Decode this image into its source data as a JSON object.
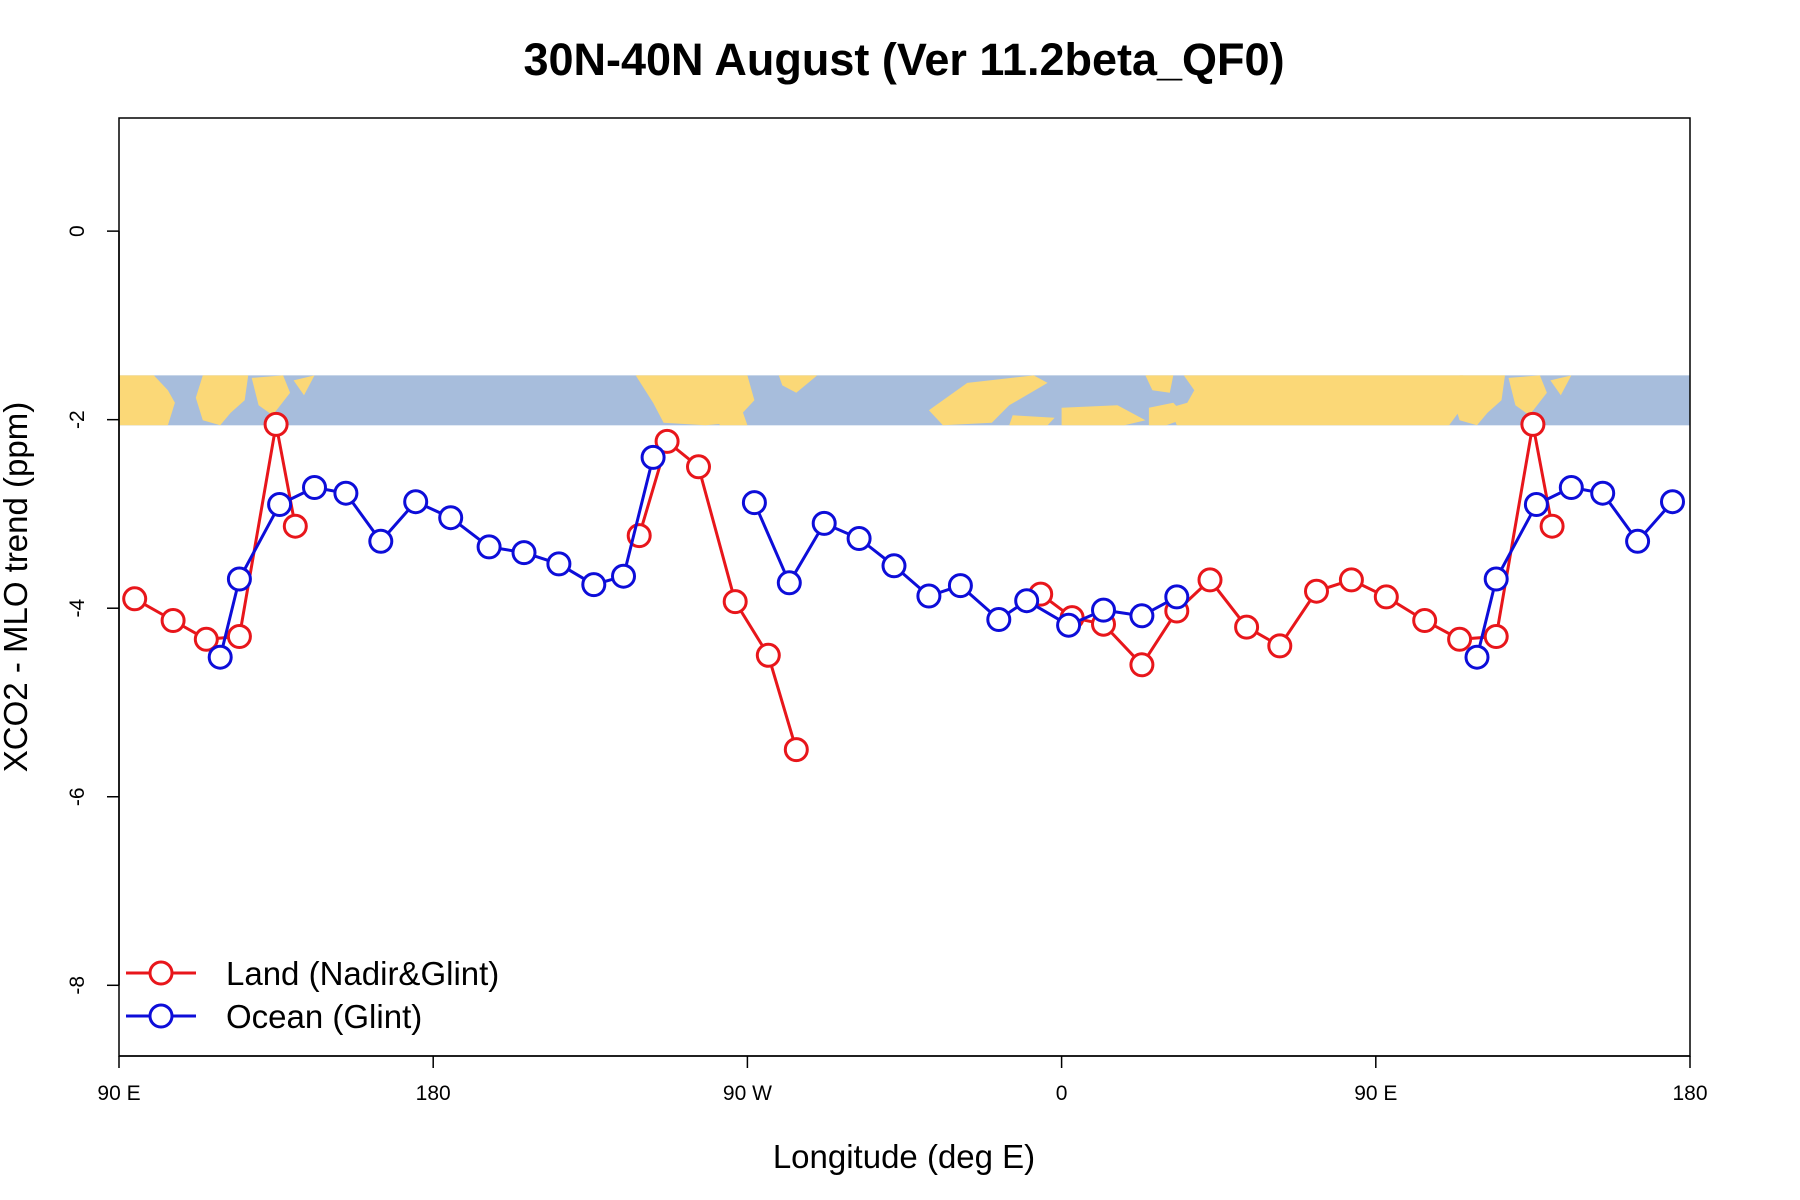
{
  "chart_data": {
    "type": "line",
    "title": "30N-40N August (Ver 11.2beta_QF0)",
    "xlabel": "Longitude (deg E)",
    "ylabel": "XCO2 - MLO trend (ppm)",
    "xlim": [
      90,
      540
    ],
    "ylim": [
      -8.75,
      1.2
    ],
    "xticks": [
      {
        "value": 90,
        "label": "90 E"
      },
      {
        "value": 180,
        "label": "180"
      },
      {
        "value": 270,
        "label": "90 W"
      },
      {
        "value": 360,
        "label": "0"
      },
      {
        "value": 450,
        "label": "90 E"
      },
      {
        "value": 540,
        "label": "180"
      }
    ],
    "yticks": [
      {
        "value": 0,
        "label": "0"
      },
      {
        "value": -2,
        "label": "-2"
      },
      {
        "value": -4,
        "label": "-4"
      },
      {
        "value": -6,
        "label": "-6"
      },
      {
        "value": -8,
        "label": "-8"
      }
    ],
    "grid": false,
    "legend_position": "bottom-left",
    "map_strip": {
      "y_top": -1.53,
      "y_bottom": -2.06,
      "ocean_color": "#a7bddc",
      "land_color": "#fbd877"
    },
    "series": [
      {
        "name": "Land (Nadir&Glint)",
        "color": "#e8161b",
        "points": [
          [
            [
              94.5,
              -3.9
            ],
            [
              105.5,
              -4.13
            ],
            [
              115,
              -4.33
            ],
            [
              124.5,
              -4.3
            ],
            [
              135,
              -2.05
            ],
            [
              140.5,
              -3.13
            ]
          ],
          [
            [
              239,
              -3.23
            ],
            [
              247,
              -2.23
            ],
            [
              256,
              -2.5
            ],
            [
              266.5,
              -3.93
            ],
            [
              276,
              -4.5
            ],
            [
              284,
              -5.5
            ]
          ],
          [
            [
              354,
              -3.85
            ],
            [
              363,
              -4.1
            ],
            [
              372,
              -4.17
            ],
            [
              383,
              -4.6
            ],
            [
              393,
              -4.03
            ],
            [
              402.5,
              -3.7
            ],
            [
              413,
              -4.2
            ],
            [
              422.5,
              -4.4
            ],
            [
              433,
              -3.82
            ],
            [
              443,
              -3.7
            ],
            [
              453,
              -3.88
            ],
            [
              464,
              -4.13
            ],
            [
              474,
              -4.33
            ],
            [
              484.5,
              -4.3
            ],
            [
              495,
              -2.05
            ],
            [
              500.5,
              -3.13
            ]
          ]
        ]
      },
      {
        "name": "Ocean (Glint)",
        "color": "#0d0dd9",
        "points": [
          [
            [
              119,
              -4.52
            ],
            [
              124.5,
              -3.69
            ],
            [
              136,
              -2.9
            ],
            [
              146,
              -2.72
            ],
            [
              155,
              -2.78
            ],
            [
              165,
              -3.29
            ],
            [
              175,
              -2.87
            ],
            [
              185,
              -3.04
            ],
            [
              196,
              -3.35
            ],
            [
              206,
              -3.41
            ],
            [
              216,
              -3.53
            ],
            [
              226,
              -3.75
            ],
            [
              234.5,
              -3.66
            ],
            [
              243,
              -2.4
            ]
          ],
          [
            [
              272,
              -2.88
            ],
            [
              282,
              -3.73
            ],
            [
              292,
              -3.1
            ],
            [
              302,
              -3.26
            ],
            [
              312,
              -3.55
            ],
            [
              322,
              -3.87
            ],
            [
              331,
              -3.76
            ],
            [
              342,
              -4.12
            ],
            [
              350,
              -3.92
            ],
            [
              362,
              -4.18
            ],
            [
              372,
              -4.02
            ],
            [
              383,
              -4.08
            ],
            [
              393,
              -3.88
            ]
          ],
          [
            [
              479,
              -4.52
            ],
            [
              484.5,
              -3.69
            ],
            [
              496,
              -2.9
            ],
            [
              506,
              -2.72
            ],
            [
              515,
              -2.78
            ],
            [
              525,
              -3.29
            ],
            [
              535,
              -2.87
            ]
          ]
        ]
      }
    ]
  }
}
